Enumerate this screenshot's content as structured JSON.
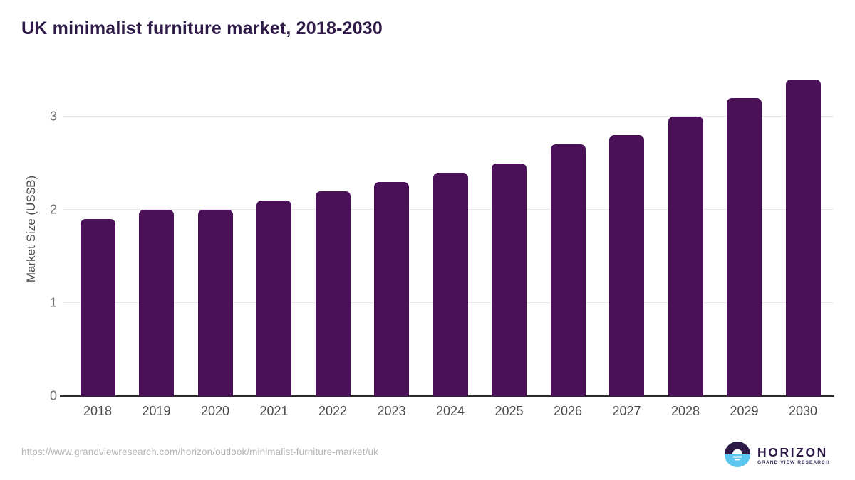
{
  "header": {
    "title": "UK minimalist furniture market, 2018-2030"
  },
  "chart_data": {
    "type": "bar",
    "title": "UK minimalist furniture market, 2018-2030",
    "categories": [
      "2018",
      "2019",
      "2020",
      "2021",
      "2022",
      "2023",
      "2024",
      "2025",
      "2026",
      "2027",
      "2028",
      "2029",
      "2030"
    ],
    "values": [
      1.9,
      2.0,
      2.0,
      2.1,
      2.2,
      2.3,
      2.4,
      2.5,
      2.7,
      2.8,
      3.0,
      3.2,
      3.4
    ],
    "xlabel": "",
    "ylabel": "Market Size (US$B)",
    "yticks": [
      0,
      1,
      2,
      3
    ],
    "ylim": [
      0,
      3.5
    ],
    "grid": "horizontal",
    "legend": "none",
    "bar_color": "#4A1159"
  },
  "footer": {
    "source_url": "https://www.grandviewresearch.com/horizon/outlook/minimalist-furniture-market/uk",
    "logo": {
      "name": "HORIZON",
      "subtitle": "GRAND VIEW RESEARCH",
      "purple": "#2E1A47",
      "blue": "#5BC6F0"
    }
  }
}
